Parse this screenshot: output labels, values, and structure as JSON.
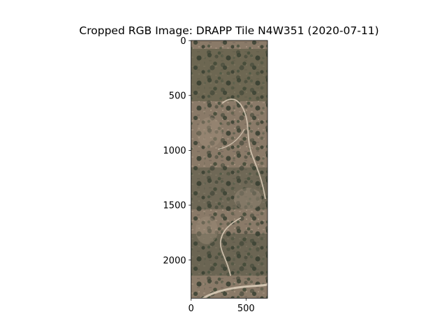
{
  "figure": {
    "title": "Cropped RGB Image: DRAPP Tile N4W351 (2020-07-11)"
  },
  "image": {
    "subject": "aerial RGB photograph of semi-arid terrain with scattered dark tree canopy and light dirt trails",
    "width_units": 700,
    "height_units": 2350
  },
  "axes": {
    "y_ticks": [
      {
        "value": 0,
        "label": "0"
      },
      {
        "value": 500,
        "label": "500"
      },
      {
        "value": 1000,
        "label": "1000"
      },
      {
        "value": 1500,
        "label": "1500"
      },
      {
        "value": 2000,
        "label": "2000"
      }
    ],
    "x_ticks": [
      {
        "value": 0,
        "label": "0"
      },
      {
        "value": 500,
        "label": "500"
      }
    ]
  },
  "colors": {
    "ground": "#8a7a68",
    "canopy": "#3c4434",
    "trail": "#d6c8b4",
    "frame": "#000000"
  }
}
